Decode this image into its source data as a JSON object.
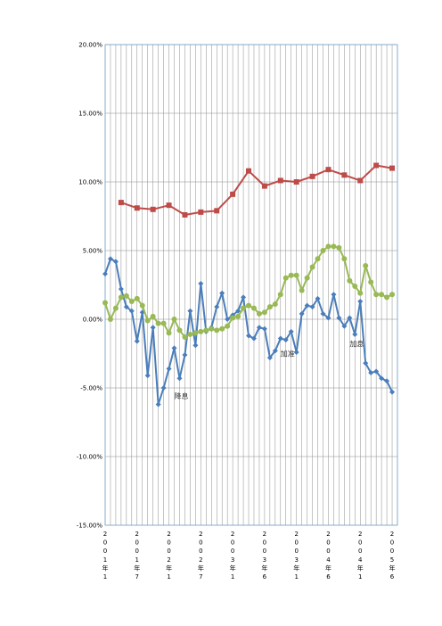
{
  "chart_data": {
    "type": "line",
    "ylim": [
      -15,
      20
    ],
    "y_ticks": [
      {
        "value": 20,
        "label": "20.00%"
      },
      {
        "value": 15,
        "label": "15.00%"
      },
      {
        "value": 10,
        "label": "10.00%"
      },
      {
        "value": 5,
        "label": "5.00%"
      },
      {
        "value": 0,
        "label": "0.00%"
      },
      {
        "value": -5,
        "label": "-5.00%"
      },
      {
        "value": -10,
        "label": "-10.00%"
      },
      {
        "value": -15,
        "label": "-15.00%"
      }
    ],
    "grid": true,
    "legend": "none",
    "x_count": 56,
    "x_tick_labels": [
      {
        "index": 0,
        "label": "2001年1"
      },
      {
        "index": 6,
        "label": "2001年7"
      },
      {
        "index": 12,
        "label": "2002年1"
      },
      {
        "index": 18,
        "label": "2002年7"
      },
      {
        "index": 24,
        "label": "2003年1"
      },
      {
        "index": 30,
        "label": "2003年6"
      },
      {
        "index": 36,
        "label": "2003年1"
      },
      {
        "index": 42,
        "label": "2004年6"
      },
      {
        "index": 48,
        "label": "2004年1"
      },
      {
        "index": 54,
        "label": "2005年6"
      }
    ],
    "series": [
      {
        "color": "#4a7ebb",
        "marker": "diamond",
        "points": [
          [
            0,
            3.3
          ],
          [
            1,
            4.4
          ],
          [
            2,
            4.2
          ],
          [
            3,
            2.2
          ],
          [
            4,
            0.9
          ],
          [
            5,
            0.6
          ],
          [
            6,
            -1.6
          ],
          [
            7,
            0.5
          ],
          [
            8,
            -4.1
          ],
          [
            9,
            -0.6
          ],
          [
            10,
            -6.2
          ],
          [
            11,
            -5.0
          ],
          [
            12,
            -3.6
          ],
          [
            13,
            -2.1
          ],
          [
            14,
            -4.3
          ],
          [
            15,
            -2.6
          ],
          [
            16,
            0.6
          ],
          [
            17,
            -1.9
          ],
          [
            18,
            2.6
          ],
          [
            19,
            -0.9
          ],
          [
            20,
            -0.6
          ],
          [
            21,
            0.9
          ],
          [
            22,
            1.9
          ],
          [
            23,
            0.0
          ],
          [
            24,
            0.3
          ],
          [
            25,
            0.6
          ],
          [
            26,
            1.6
          ],
          [
            27,
            -1.2
          ],
          [
            28,
            -1.4
          ],
          [
            29,
            -0.6
          ],
          [
            30,
            -0.7
          ],
          [
            31,
            -2.8
          ],
          [
            32,
            -2.3
          ],
          [
            33,
            -1.4
          ],
          [
            34,
            -1.5
          ],
          [
            35,
            -0.9
          ],
          [
            36,
            -2.4
          ],
          [
            37,
            0.4
          ],
          [
            38,
            1.0
          ],
          [
            39,
            0.9
          ],
          [
            40,
            1.5
          ],
          [
            41,
            0.4
          ],
          [
            42,
            0.1
          ],
          [
            43,
            1.8
          ],
          [
            44,
            0.1
          ],
          [
            45,
            -0.5
          ],
          [
            46,
            0.1
          ],
          [
            47,
            -1.1
          ],
          [
            48,
            1.3
          ],
          [
            49,
            -3.2
          ],
          [
            50,
            -3.9
          ],
          [
            51,
            -3.8
          ],
          [
            52,
            -4.3
          ],
          [
            53,
            -4.5
          ],
          [
            54,
            -5.3
          ]
        ]
      },
      {
        "color": "#be4b48",
        "marker": "square",
        "points": [
          [
            3,
            8.5
          ],
          [
            6,
            8.1
          ],
          [
            9,
            8.0
          ],
          [
            12,
            8.3
          ],
          [
            15,
            7.6
          ],
          [
            18,
            7.8
          ],
          [
            21,
            7.9
          ],
          [
            24,
            9.1
          ],
          [
            27,
            10.8
          ],
          [
            30,
            9.7
          ],
          [
            33,
            10.1
          ],
          [
            36,
            10.0
          ],
          [
            39,
            10.4
          ],
          [
            42,
            10.9
          ],
          [
            45,
            10.5
          ],
          [
            48,
            10.1
          ],
          [
            51,
            11.2
          ],
          [
            54,
            11.0
          ]
        ]
      },
      {
        "color": "#98b954",
        "marker": "circle",
        "points": [
          [
            0,
            1.2
          ],
          [
            1,
            0.0
          ],
          [
            2,
            0.8
          ],
          [
            3,
            1.6
          ],
          [
            4,
            1.7
          ],
          [
            5,
            1.3
          ],
          [
            6,
            1.5
          ],
          [
            7,
            1.0
          ],
          [
            8,
            -0.1
          ],
          [
            9,
            0.2
          ],
          [
            10,
            -0.3
          ],
          [
            11,
            -0.3
          ],
          [
            12,
            -1.0
          ],
          [
            13,
            0.0
          ],
          [
            14,
            -0.8
          ],
          [
            15,
            -1.3
          ],
          [
            16,
            -1.1
          ],
          [
            17,
            -1.0
          ],
          [
            18,
            -0.9
          ],
          [
            19,
            -0.8
          ],
          [
            20,
            -0.7
          ],
          [
            21,
            -0.8
          ],
          [
            22,
            -0.7
          ],
          [
            23,
            -0.5
          ],
          [
            24,
            0.1
          ],
          [
            25,
            0.2
          ],
          [
            26,
            0.8
          ],
          [
            27,
            1.0
          ],
          [
            28,
            0.8
          ],
          [
            29,
            0.4
          ],
          [
            30,
            0.5
          ],
          [
            31,
            0.9
          ],
          [
            32,
            1.1
          ],
          [
            33,
            1.8
          ],
          [
            34,
            3.0
          ],
          [
            35,
            3.2
          ],
          [
            36,
            3.2
          ],
          [
            37,
            2.1
          ],
          [
            38,
            3.0
          ],
          [
            39,
            3.8
          ],
          [
            40,
            4.4
          ],
          [
            41,
            5.0
          ],
          [
            42,
            5.3
          ],
          [
            43,
            5.3
          ],
          [
            44,
            5.2
          ],
          [
            45,
            4.4
          ],
          [
            46,
            2.8
          ],
          [
            47,
            2.4
          ],
          [
            48,
            1.9
          ],
          [
            49,
            3.9
          ],
          [
            50,
            2.7
          ],
          [
            51,
            1.8
          ],
          [
            52,
            1.8
          ],
          [
            53,
            1.6
          ],
          [
            54,
            1.8
          ]
        ]
      }
    ],
    "annotations": [
      {
        "text": "降息",
        "x": 13,
        "y": -5.6
      },
      {
        "text": "加准",
        "x": 33,
        "y": -2.5
      },
      {
        "text": "加息",
        "x": 46,
        "y": -1.8
      }
    ]
  }
}
